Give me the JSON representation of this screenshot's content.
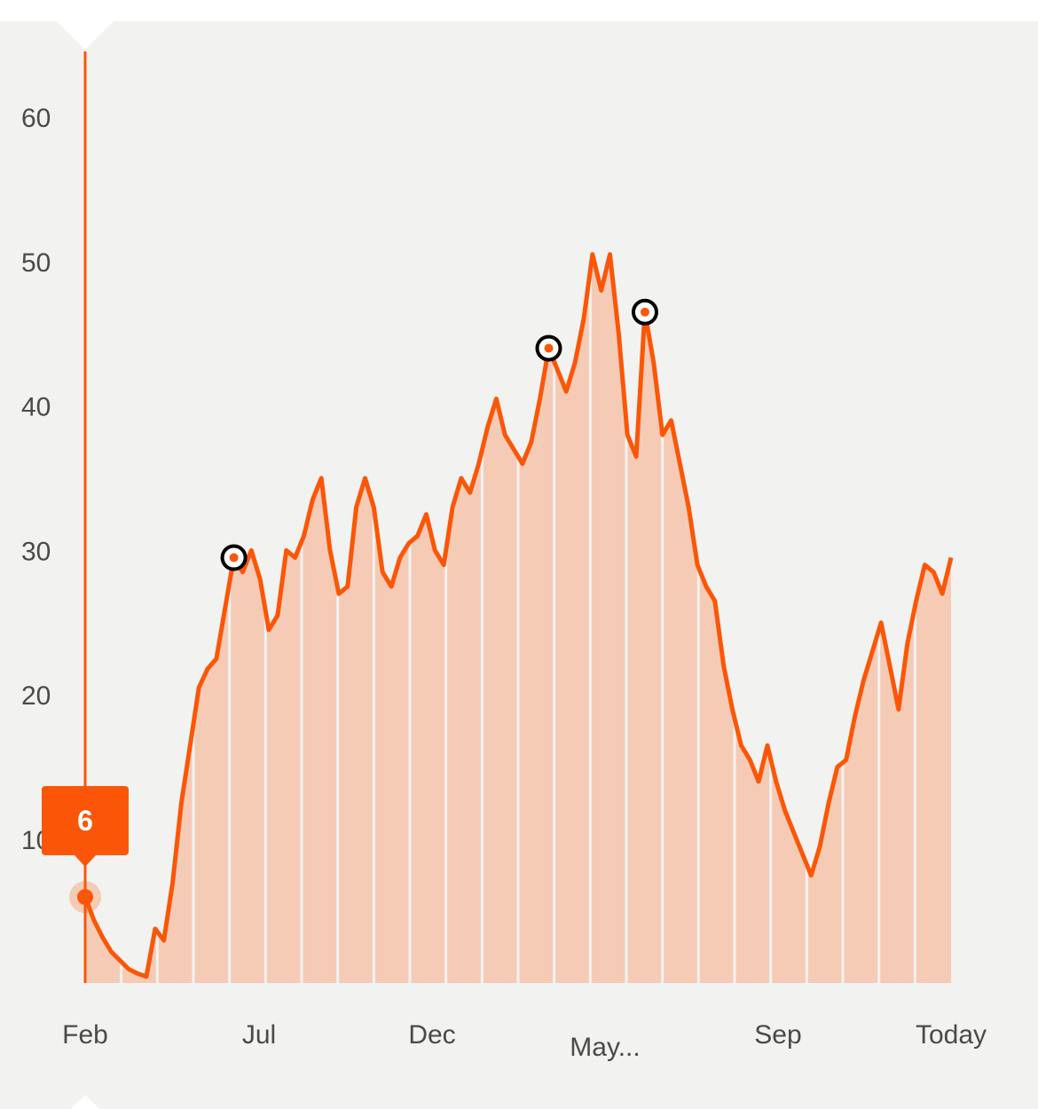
{
  "chart_data": {
    "type": "area",
    "yticks": [
      "10",
      "20",
      "30",
      "40",
      "50",
      "60"
    ],
    "ytick_values": [
      10,
      20,
      30,
      40,
      50,
      60
    ],
    "ylim": [
      0,
      64
    ],
    "xticks": [
      "Feb",
      "Jul",
      "Dec",
      "May...",
      "Sep",
      "Today"
    ],
    "xlabel": "",
    "ylabel": "",
    "grid": false,
    "tooltip": {
      "label": "6",
      "value": 6
    },
    "colors": {
      "line": "#fb5607",
      "fill": "#f5cbb6",
      "background": "#f2f2f0",
      "marker_ring": "#000000"
    },
    "series": [
      {
        "values": [
          6,
          4.4,
          3.2,
          2.2,
          1.6,
          1.0,
          0.7,
          0.5,
          3.8,
          3.0,
          7.0,
          12.5,
          16.5,
          20.5,
          21.8,
          22.5,
          26.0,
          29.5,
          28.5,
          30.0,
          28.0,
          24.5,
          25.5,
          30.0,
          29.5,
          31.0,
          33.5,
          35.0,
          30.0,
          27.0,
          27.5,
          33.0,
          35.0,
          33.0,
          28.5,
          27.5,
          29.5,
          30.5,
          31.0,
          32.5,
          30.0,
          29.0,
          33.0,
          35.0,
          34.0,
          36.0,
          38.5,
          40.5,
          38.0,
          37.0,
          36.0,
          37.5,
          40.5,
          44.0,
          42.5,
          41.0,
          43.0,
          46.0,
          50.5,
          48.0,
          50.5,
          45.0,
          38.0,
          36.5,
          46.5,
          43.0,
          38.0,
          39.0,
          36.0,
          33.0,
          29.0,
          27.5,
          26.5,
          22.0,
          19.0,
          16.5,
          15.5,
          14.0,
          16.5,
          14.0,
          12.0,
          10.5,
          9.0,
          7.5,
          9.5,
          12.5,
          15.0,
          15.5,
          18.5,
          21.0,
          23.0,
          25.0,
          22.0,
          19.0,
          23.5,
          26.5,
          29.0,
          28.5,
          27.0,
          29.5
        ]
      }
    ],
    "highlighted_points": [
      {
        "index": 17,
        "value": 29.5
      },
      {
        "index": 53,
        "value": 44.0
      },
      {
        "index": 64,
        "value": 46.5
      }
    ]
  }
}
